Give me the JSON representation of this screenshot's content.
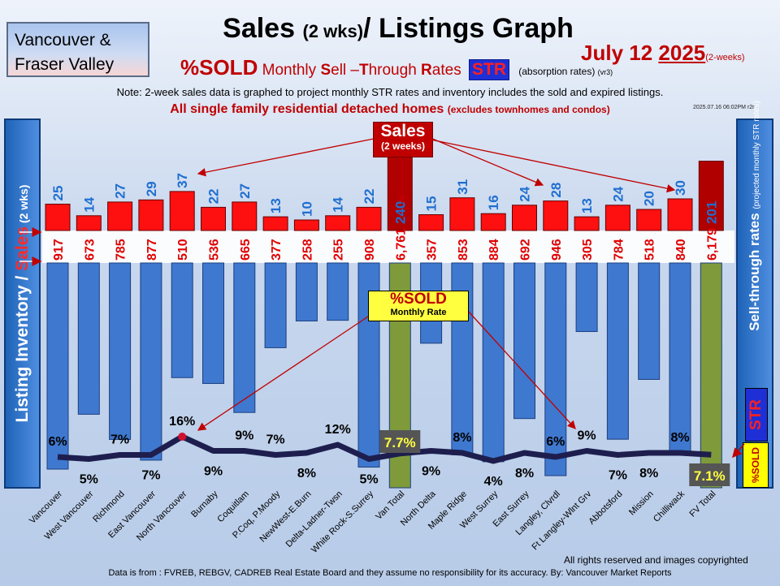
{
  "header": {
    "region_line1": "Vancouver &",
    "region_line2": "Fraser Valley",
    "title_main": "Sales ",
    "title_small": "(2 wks)",
    "title_rest": "/ Listings Graph",
    "str_pct": "%SOLD",
    "str_monthly": " Monthly ",
    "str_s": "S",
    "str_ell": "ell –",
    "str_t": "T",
    "str_hrough": "hrough ",
    "str_r": "R",
    "str_ates": "ates",
    "str_badge": "STR",
    "str_note": "(absorption rates)",
    "str_version": "(vr3)",
    "date_a": "July 12 ",
    "date_year": "2025",
    "date_small": "(2-weeks)",
    "note": "Note: 2-week sales data is graphed to project monthly STR rates and inventory includes the sold and expired listings.",
    "subhead_main": "All single family residential detached homes",
    "subhead_small": "(excludes townhomes and condos)",
    "stamp": "2025.07.16 06:02PM r2r"
  },
  "side": {
    "left_a": "Listing Inventory / ",
    "left_b": "Sales",
    "left_c": " (2  wks)",
    "right_a": "Sell-through rates",
    "right_b": "(projected monthly STR rates)",
    "str_badge": "STR",
    "sold_badge": "%SOLD"
  },
  "callouts": {
    "sales_main": "Sales",
    "sales_sub": "(2 weeks)",
    "sold_main": "%SOLD",
    "sold_sub": "Monthly Rate"
  },
  "footer": {
    "rights": "All rights reserved and  images copyrighted",
    "source": "Data is from : FVREB, REBGV, CADREB Real Estate Board and they assume no responsibility for its accuracy. By: Vancouver Market Reports"
  },
  "colors": {
    "sales_bar": "#ff1010",
    "sales_total": "#b00000",
    "inventory_bar": "#3f78cf",
    "inventory_total": "#7f9a3a",
    "str_line": "#1e1e4e",
    "label_band": "#ffffff"
  },
  "chart_data": {
    "type": "bar",
    "categories": [
      "Vancouver",
      "West Vancouver",
      "Richmond",
      "East Vancouver",
      "North Vancouver",
      "Burnaby",
      "Coquitlam",
      "P.Coq, P.Moody",
      "NewWest-E.Burn",
      "Delta-Ladner-Twsn",
      "White Rock-S.Surrey",
      "Van Total",
      "North Delta",
      "Maple Ridge",
      "West Surrey",
      "East Surrey",
      "Langley, Clvrdl",
      "Ft Langley-Wlnt Grv",
      "Abbotsford",
      "Mission",
      "Chilliwack",
      "FV Total"
    ],
    "sales_labels": [
      "25",
      "14",
      "27",
      "29",
      "37",
      "22",
      "27",
      "13",
      "10",
      "14",
      "22",
      "240",
      "15",
      "31",
      "16",
      "24",
      "28",
      "13",
      "24",
      "20",
      "30",
      "201"
    ],
    "inventory_labels": [
      "917",
      "673",
      "785",
      "877",
      "510",
      "536",
      "665",
      "377",
      "258",
      "255",
      "908",
      "6,761",
      "357",
      "853",
      "884",
      "692",
      "946",
      "305",
      "784",
      "518",
      "840",
      "6,179"
    ],
    "str_labels": [
      "6%",
      "5%",
      "7%",
      "7%",
      "16%",
      "9%",
      "9%",
      "7%",
      "8%",
      "12%",
      "5%",
      "7.7%",
      "9%",
      "8%",
      "4%",
      "8%",
      "6%",
      "9%",
      "7%",
      "8%",
      "8%",
      "7.1%"
    ],
    "series": [
      {
        "name": "Sales",
        "values": [
          25,
          14,
          27,
          29,
          37,
          22,
          27,
          13,
          10,
          14,
          22,
          240,
          15,
          31,
          16,
          24,
          28,
          13,
          24,
          20,
          30,
          201
        ]
      },
      {
        "name": "Inventory",
        "values": [
          917,
          673,
          785,
          877,
          510,
          536,
          665,
          377,
          258,
          255,
          908,
          6761,
          357,
          853,
          884,
          692,
          946,
          305,
          784,
          518,
          840,
          6179
        ]
      },
      {
        "name": "%SOLD",
        "values": [
          6,
          5,
          7,
          7,
          16,
          9,
          9,
          7,
          8,
          12,
          5,
          7.7,
          9,
          8,
          4,
          8,
          6,
          9,
          7,
          8,
          8,
          7.1
        ]
      }
    ],
    "totals_indices": [
      11,
      21
    ]
  }
}
